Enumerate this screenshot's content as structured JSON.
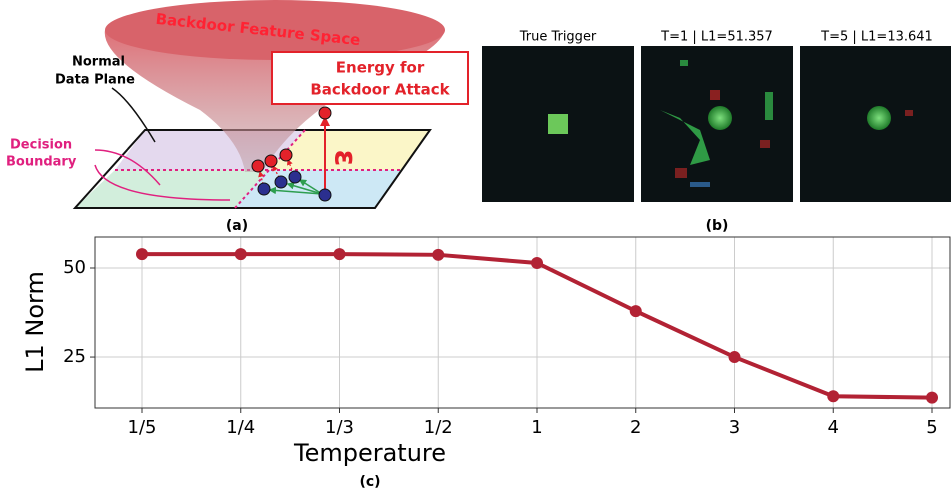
{
  "chart_data": {
    "type": "line",
    "x_label": "Temperature",
    "y_label": "L1 Norm",
    "categories": [
      "1/5",
      "1/4",
      "1/3",
      "1/2",
      "1",
      "2",
      "3",
      "4",
      "5"
    ],
    "values": [
      53.9,
      53.9,
      53.9,
      53.7,
      51.4,
      37.9,
      25.0,
      14.0,
      13.6
    ],
    "color": "#b22234",
    "ylim": [
      10.7,
      58.7
    ],
    "yticks": [
      25,
      50
    ],
    "grid": true,
    "caption": "(c)"
  },
  "diagram": {
    "feature_space": "Backdoor Feature Space",
    "plane_lines": [
      "Normal",
      "Data Plane"
    ],
    "boundary_lines": [
      "Decision",
      "Boundary"
    ],
    "energy_lines": [
      "Energy for",
      "Backdoor Attack"
    ],
    "epsilon": "ε",
    "caption": "(a)"
  },
  "images": {
    "titles": [
      "True Trigger",
      "T=1 | L1=51.357",
      "T=5 | L1=13.641"
    ],
    "caption": "(b)"
  }
}
